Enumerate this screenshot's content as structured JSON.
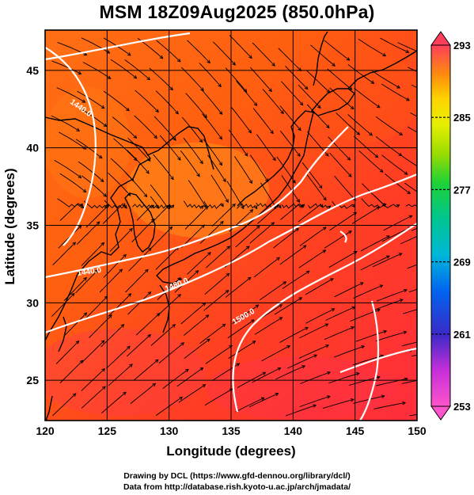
{
  "title": "MSM 18Z09Aug2025 (850.0hPa)",
  "axes": {
    "xlabel": "Longitude (degrees)",
    "ylabel": "Latitude  (degrees)",
    "xticks": [
      "120",
      "125",
      "130",
      "135",
      "140",
      "145",
      "150"
    ],
    "yticks": [
      "25",
      "30",
      "35",
      "40",
      "45"
    ],
    "xrange": [
      120,
      150
    ],
    "yrange": [
      22.4,
      47.6
    ],
    "grid": true
  },
  "colorbar": {
    "labels": [
      "293",
      "285",
      "277",
      "269",
      "261",
      "253"
    ],
    "range": [
      253,
      293
    ],
    "colors": [
      "#ff3f5a",
      "#ff5a17",
      "#ff7f0d",
      "#ffaa10",
      "#ffd400",
      "#e6ef00",
      "#8fdc00",
      "#1fd235",
      "#00c58f",
      "#00b2d8",
      "#0080f0",
      "#1a4fe8",
      "#2a2ac8",
      "#7a26c0",
      "#d22ed8",
      "#ff59cc"
    ]
  },
  "contour_labels": [
    "1440.0",
    "1440.0",
    "1480.0",
    "1500.0"
  ],
  "credits": {
    "line1": "Drawing by DCL (https://www.gfd-dennou.org/library/dcl/)",
    "line2": "Data from http://database.rish.kyoto-u.ac.jp/arch/jmadata/"
  }
}
